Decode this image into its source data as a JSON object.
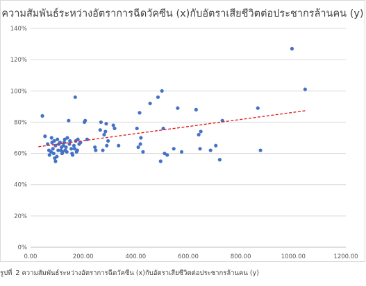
{
  "chart_data": {
    "type": "scatter",
    "title": "ความสัมพันธ์ระหว่างอัตราการฉีดวัคซีน (x)กับอัตราเสียชีวิตต่อประชากรล้านคน (y)",
    "xlabel": "",
    "ylabel": "",
    "xlim": [
      0,
      1200
    ],
    "ylim": [
      0,
      1.4
    ],
    "x_ticks": [
      "0.00",
      "200.00",
      "400.00",
      "600.00",
      "800.00",
      "1000.00",
      "1200.00"
    ],
    "y_ticks": [
      "0%",
      "20%",
      "40%",
      "60%",
      "80%",
      "100%",
      "120%",
      "140%"
    ],
    "grid": "horizontal",
    "legend": "none",
    "point_color": "#4472c4",
    "trendline": {
      "type": "linear",
      "color": "#e02020",
      "style": "dashed",
      "x": [
        30,
        1045
      ],
      "y": [
        0.643,
        0.873
      ]
    },
    "x": [
      45,
      55,
      65,
      70,
      72,
      78,
      80,
      82,
      85,
      88,
      90,
      92,
      95,
      95,
      100,
      102,
      105,
      108,
      112,
      115,
      118,
      120,
      122,
      125,
      128,
      130,
      132,
      135,
      138,
      140,
      145,
      148,
      150,
      155,
      158,
      160,
      165,
      168,
      170,
      172,
      175,
      178,
      180,
      185,
      190,
      205,
      208,
      215,
      245,
      248,
      265,
      268,
      275,
      280,
      285,
      288,
      290,
      295,
      315,
      320,
      335,
      405,
      410,
      415,
      418,
      420,
      428,
      455,
      485,
      495,
      500,
      505,
      510,
      520,
      545,
      560,
      575,
      630,
      640,
      645,
      648,
      685,
      705,
      720,
      730,
      865,
      875,
      995,
      1045
    ],
    "y": [
      0.84,
      0.71,
      0.66,
      0.62,
      0.59,
      0.61,
      0.7,
      0.67,
      0.63,
      0.6,
      0.68,
      0.57,
      0.55,
      0.65,
      0.58,
      0.69,
      0.62,
      0.66,
      0.67,
      0.62,
      0.64,
      0.6,
      0.61,
      0.65,
      0.67,
      0.69,
      0.62,
      0.64,
      0.61,
      0.7,
      0.81,
      0.66,
      0.68,
      0.63,
      0.6,
      0.59,
      0.65,
      0.63,
      0.96,
      0.68,
      0.61,
      0.62,
      0.69,
      0.66,
      0.67,
      0.8,
      0.81,
      0.69,
      0.64,
      0.62,
      0.75,
      0.8,
      0.62,
      0.72,
      0.74,
      0.79,
      0.65,
      0.68,
      0.78,
      0.76,
      0.65,
      0.76,
      0.64,
      0.86,
      0.66,
      0.7,
      0.61,
      0.92,
      0.96,
      0.55,
      1.0,
      0.76,
      0.6,
      0.59,
      0.63,
      0.89,
      0.61,
      0.88,
      0.72,
      0.63,
      0.74,
      0.62,
      0.65,
      0.56,
      0.81,
      0.89,
      0.62,
      1.27,
      1.01
    ]
  },
  "caption": {
    "label": "รูปที่",
    "number": "2",
    "text": "ความสัมพันธ์ระหว่างอัตราการฉีดวัคซีน (x)กับอัตราเสียชีวิตต่อประชากรล้านคน (y)"
  }
}
